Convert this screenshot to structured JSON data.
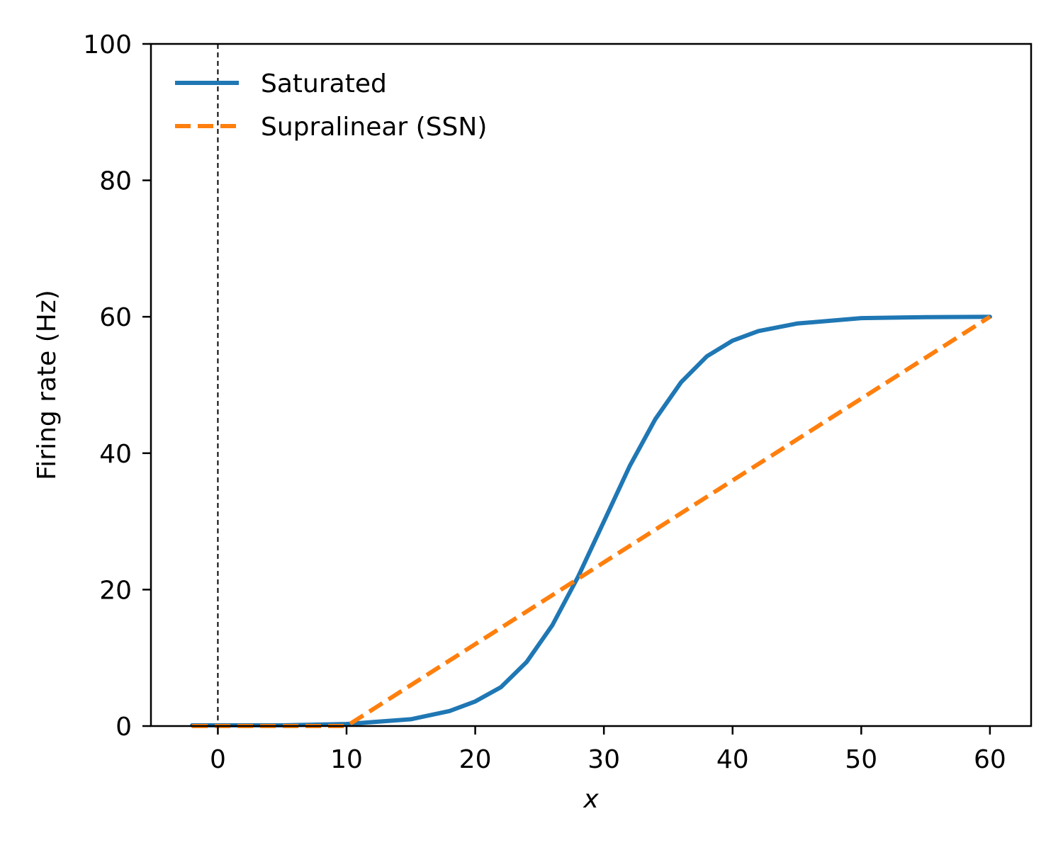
{
  "chart_data": {
    "type": "line",
    "title": "",
    "xlabel": "x",
    "ylabel": "Firing rate (Hz)",
    "xlim": [
      -5.2,
      63.2
    ],
    "ylim": [
      0,
      100
    ],
    "xticks": [
      "0",
      "10",
      "20",
      "30",
      "40",
      "50",
      "60"
    ],
    "yticks": [
      "0",
      "20",
      "40",
      "60",
      "80",
      "100"
    ],
    "legend_position": "top-left",
    "grid": false,
    "reference_line": {
      "x": 0,
      "style": "dashed",
      "color": "#000000"
    },
    "series": [
      {
        "name": "Saturated",
        "color": "#1f77b4",
        "style": "solid",
        "x": [
          -2,
          0,
          5,
          10,
          15,
          18,
          20,
          22,
          24,
          26,
          28,
          30,
          32,
          34,
          36,
          38,
          40,
          42,
          45,
          50,
          55,
          60
        ],
        "y": [
          0.1,
          0.1,
          0.1,
          0.3,
          1.0,
          2.2,
          3.6,
          5.7,
          9.4,
          14.8,
          21.9,
          30.0,
          38.1,
          45.0,
          50.4,
          54.2,
          56.5,
          57.9,
          59.0,
          59.8,
          59.95,
          60.0
        ]
      },
      {
        "name": "Supralinear (SSN)",
        "color": "#ff7f0e",
        "style": "dashed",
        "x": [
          -2,
          10,
          20,
          30,
          40,
          50,
          60
        ],
        "y": [
          0,
          0,
          12,
          24,
          36,
          48,
          60
        ]
      }
    ]
  }
}
